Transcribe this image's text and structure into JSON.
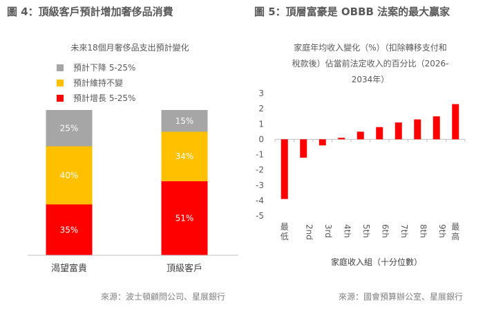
{
  "left": {
    "title": "圖 4：頂級客戶預計增加奢侈品消費",
    "source": "來源：波士頓顧問公司、星展銀行"
  },
  "right": {
    "title": "圖 5：頂層富豪是 OBBB 法案的最大贏家",
    "source": "來源：國會預算辦公室、星展銀行"
  },
  "chart_data": [
    {
      "type": "bar",
      "stacked": true,
      "title": "未來18個月奢侈品支出預計變化",
      "categories": [
        "渴望富貴",
        "頂級客戶"
      ],
      "series": [
        {
          "name": "預計增長 5-25%",
          "color": "#ff0000",
          "values": [
            35,
            51
          ],
          "labels": [
            "35%",
            "51%"
          ]
        },
        {
          "name": "預計維持不變",
          "color": "#ffc000",
          "values": [
            40,
            34
          ],
          "labels": [
            "40%",
            "34%"
          ]
        },
        {
          "name": "預計下降 5-25%",
          "color": "#a6a6a6",
          "values": [
            25,
            15
          ],
          "labels": [
            "25%",
            "15%"
          ]
        }
      ],
      "legend_order": [
        "預計下降 5-25%",
        "預計維持不變",
        "預計增長 5-25%"
      ],
      "ylim": [
        0,
        100
      ]
    },
    {
      "type": "bar",
      "title_lines": [
        "家庭年均收入變化（%）（扣除轉移支付和",
        "稅款後）佔當前法定收入的百分比（2026-",
        "2034年）"
      ],
      "categories": [
        "最低",
        "2nd",
        "3rd",
        "4th",
        "5th",
        "6th",
        "7th",
        "8th",
        "9th",
        "最高"
      ],
      "values": [
        -3.9,
        -1.2,
        -0.4,
        0.1,
        0.5,
        0.8,
        1.1,
        1.3,
        1.5,
        2.3
      ],
      "xlabel": "家庭收入組（十分位數）",
      "ylim": [
        -5,
        3
      ],
      "yticks": [
        3,
        2,
        1,
        0,
        -1,
        -2,
        -3,
        -4,
        -5
      ],
      "bar_color": "#ff0000"
    }
  ]
}
